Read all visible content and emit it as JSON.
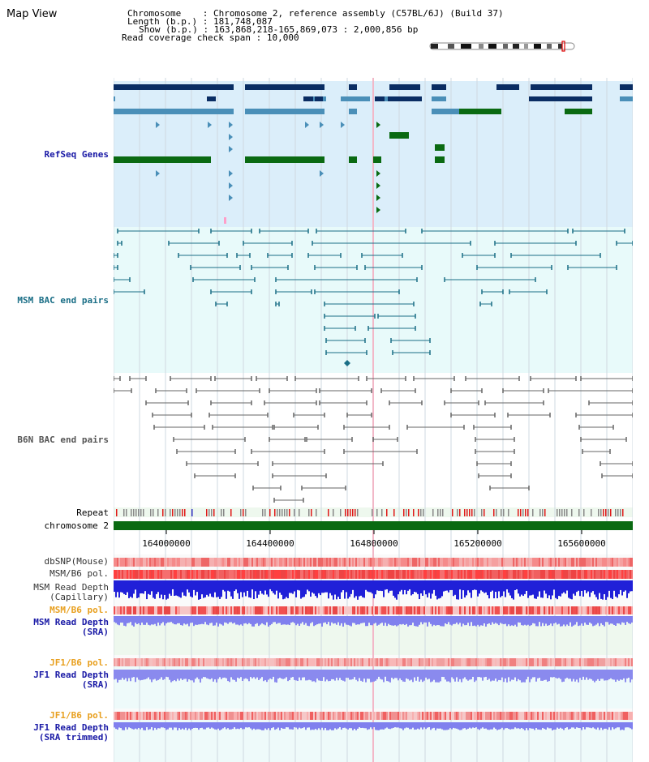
{
  "header": {
    "title": "Map View",
    "chromosome_key": "Chromosome",
    "chromosome_val": "Chromosome 2, reference assembly (C57BL/6J) (Build 37)",
    "length_key": "Length (b.p.)",
    "length_val": "181,748,087",
    "show_key": "Show (b.p.)",
    "show_val": "163,868,218-165,869,073 : 2,000,856 bp",
    "span_key": "Read coverage check span",
    "span_val": "10,000"
  },
  "tracks": {
    "refseq": "RefSeq Genes",
    "msm_bac": "MSM BAC end pairs",
    "b6n_bac": "B6N BAC end pairs",
    "repeat": "Repeat",
    "chromosome": "chromosome 2",
    "dbsnp": "dbSNP(Mouse)",
    "msm_b6_pol_1": "MSM/B6 pol.",
    "msm_depth_cap_1": "MSM Read Depth",
    "msm_depth_cap_2": "(Capillary)",
    "msm_b6_pol_2": "MSM/B6 pol.",
    "msm_depth_sra_1": "MSM Read Depth",
    "msm_depth_sra_2": "(SRA)",
    "jf1_pol_1": "JF1/B6 pol.",
    "jf1_depth_1": "JF1 Read Depth",
    "jf1_depth_2": "(SRA)",
    "jf1_pol_2": "JF1/B6 pol.",
    "jf1_depth_trim_1": "JF1 Read Depth",
    "jf1_depth_trim_2": "(SRA trimmed)"
  },
  "axis": {
    "ticks": [
      "164000000",
      "164400000",
      "164800000",
      "165200000",
      "165600000"
    ]
  },
  "colors": {
    "refseq_bg": "#dbeefa",
    "bac_bg": "#e8fafa",
    "gene_dark": "#0a2d63",
    "gene_mid": "#4a8fb8",
    "gene_green": "#0a6a12",
    "msm_bac": "#1a6e86",
    "b6n_bac": "#666666",
    "chromosome": "#0a6a12",
    "snp": "#f06a6a",
    "depth": "#1f1fd8"
  }
}
